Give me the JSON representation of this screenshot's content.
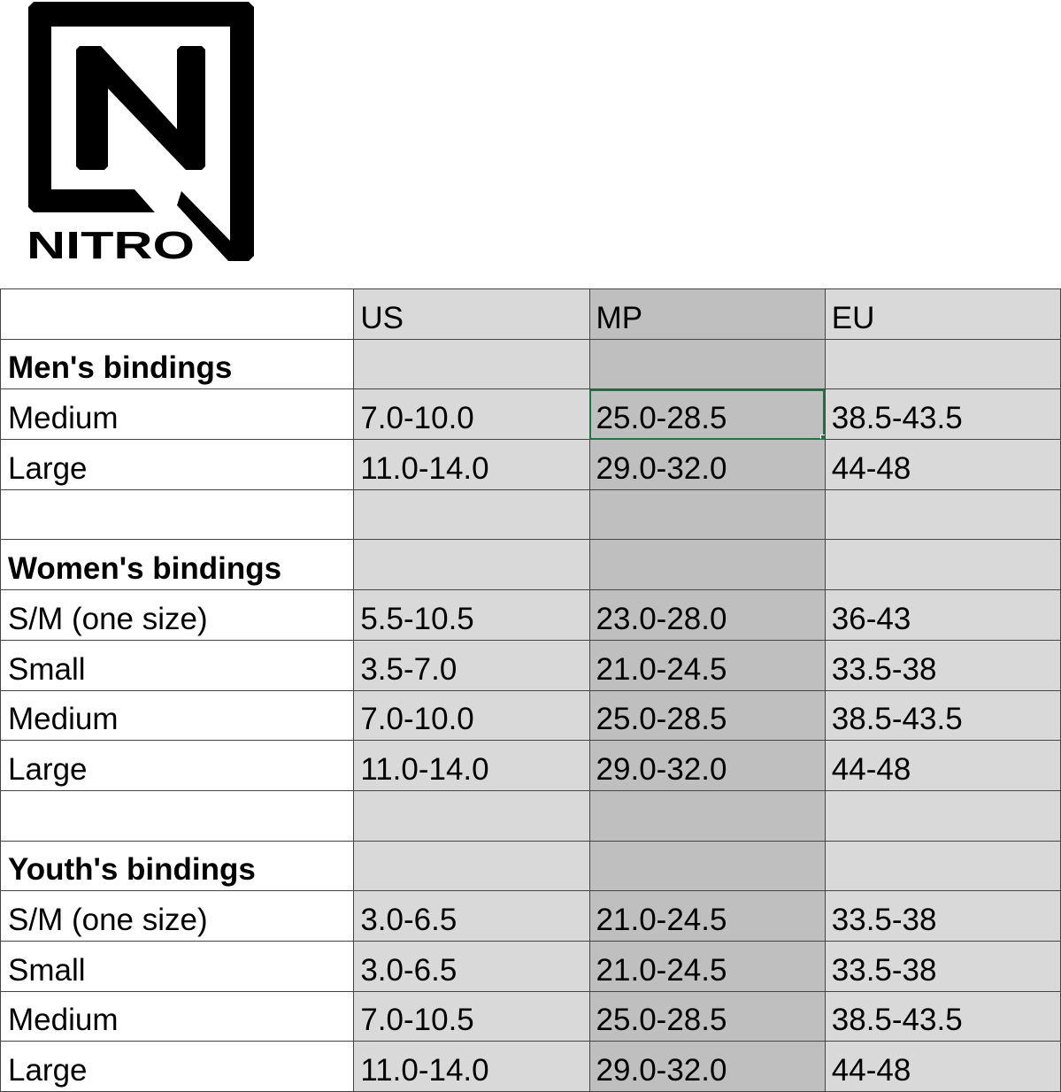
{
  "logo": {
    "text": "NITRO"
  },
  "table": {
    "headers": [
      "",
      "US",
      "MP",
      "EU"
    ],
    "rows": [
      {
        "label": "Men's bindings",
        "section": true,
        "us": "",
        "mp": "",
        "eu": ""
      },
      {
        "label": "Medium",
        "us": "7.0-10.0",
        "mp": "25.0-28.5",
        "eu": "38.5-43.5",
        "selected": true
      },
      {
        "label": "Large",
        "us": "11.0-14.0",
        "mp": "29.0-32.0",
        "eu": "44-48"
      },
      {
        "label": "",
        "us": "",
        "mp": "",
        "eu": ""
      },
      {
        "label": "Women's bindings",
        "section": true,
        "us": "",
        "mp": "",
        "eu": ""
      },
      {
        "label": "S/M (one size)",
        "us": "5.5-10.5",
        "mp": "23.0-28.0",
        "eu": "36-43"
      },
      {
        "label": "Small",
        "us": "3.5-7.0",
        "mp": "21.0-24.5",
        "eu": "33.5-38"
      },
      {
        "label": "Medium",
        "us": "7.0-10.0",
        "mp": "25.0-28.5",
        "eu": "38.5-43.5"
      },
      {
        "label": "Large",
        "us": "11.0-14.0",
        "mp": "29.0-32.0",
        "eu": "44-48"
      },
      {
        "label": "",
        "us": "",
        "mp": "",
        "eu": ""
      },
      {
        "label": "Youth's bindings",
        "section": true,
        "us": "",
        "mp": "",
        "eu": ""
      },
      {
        "label": "S/M (one size)",
        "us": "3.0-6.5",
        "mp": "21.0-24.5",
        "eu": "33.5-38"
      },
      {
        "label": "Small",
        "us": "3.0-6.5",
        "mp": "21.0-24.5",
        "eu": "33.5-38"
      },
      {
        "label": "Medium",
        "us": "7.0-10.5",
        "mp": "25.0-28.5",
        "eu": "38.5-43.5"
      },
      {
        "label": "Large",
        "us": "11.0-14.0",
        "mp": "29.0-32.0",
        "eu": "44-48"
      }
    ]
  },
  "colors": {
    "us_eu_fill": "#d9d9d9",
    "mp_fill": "#bfbfbf",
    "selection": "#217346"
  }
}
